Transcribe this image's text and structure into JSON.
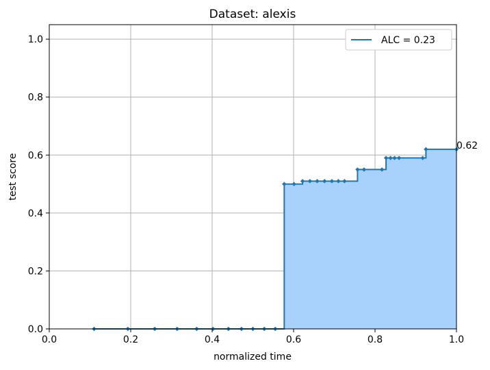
{
  "chart_data": {
    "type": "line",
    "title": "Dataset: alexis",
    "xlabel": "normalized time",
    "ylabel": "test score",
    "xlim": [
      0.0,
      1.0
    ],
    "ylim": [
      0.0,
      1.05
    ],
    "grid": true,
    "step": "post",
    "filled": true,
    "x_ticks": [
      "0.0",
      "0.2",
      "0.4",
      "0.6",
      "0.8",
      "1.0"
    ],
    "y_ticks": [
      "0.0",
      "0.2",
      "0.4",
      "0.6",
      "0.8",
      "1.0"
    ],
    "legend": {
      "placement": "top-right",
      "label": "ALC = 0.23"
    },
    "final_label": "0.62",
    "colors": {
      "line": "#1f77b4",
      "fill": "#a8d1fc",
      "grid": "#b0b0b0"
    },
    "series": [
      {
        "name": "ALC = 0.23",
        "x": [
          0.11,
          0.193,
          0.259,
          0.314,
          0.362,
          0.402,
          0.44,
          0.472,
          0.5,
          0.528,
          0.555,
          0.577,
          0.601,
          0.622,
          0.64,
          0.658,
          0.676,
          0.694,
          0.71,
          0.725,
          0.757,
          0.773,
          0.817,
          0.827,
          0.838,
          0.848,
          0.859,
          0.917,
          0.925,
          1.0
        ],
        "y": [
          0.0,
          0.0,
          0.0,
          0.0,
          0.0,
          0.0,
          0.0,
          0.0,
          0.0,
          0.0,
          0.0,
          0.5,
          0.5,
          0.51,
          0.51,
          0.51,
          0.51,
          0.51,
          0.51,
          0.51,
          0.55,
          0.55,
          0.55,
          0.59,
          0.59,
          0.59,
          0.59,
          0.59,
          0.62,
          0.62
        ]
      }
    ]
  }
}
